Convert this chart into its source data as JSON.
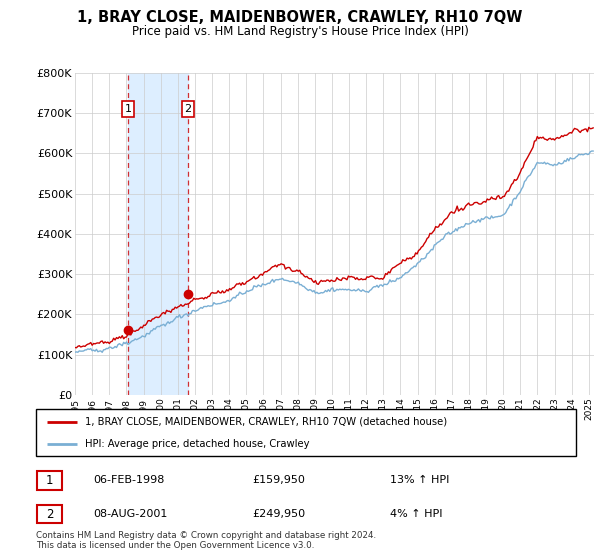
{
  "title": "1, BRAY CLOSE, MAIDENBOWER, CRAWLEY, RH10 7QW",
  "subtitle": "Price paid vs. HM Land Registry's House Price Index (HPI)",
  "legend_label_red": "1, BRAY CLOSE, MAIDENBOWER, CRAWLEY, RH10 7QW (detached house)",
  "legend_label_blue": "HPI: Average price, detached house, Crawley",
  "sale1_date": "06-FEB-1998",
  "sale1_price": "£159,950",
  "sale1_hpi": "13% ↑ HPI",
  "sale2_date": "08-AUG-2001",
  "sale2_price": "£249,950",
  "sale2_hpi": "4% ↑ HPI",
  "footer": "Contains HM Land Registry data © Crown copyright and database right 2024.\nThis data is licensed under the Open Government Licence v3.0.",
  "ylim": [
    0,
    800000
  ],
  "yticks": [
    0,
    100000,
    200000,
    300000,
    400000,
    500000,
    600000,
    700000,
    800000
  ],
  "red_color": "#cc0000",
  "blue_color": "#7aafd4",
  "shade_color": "#ddeeff",
  "sale1_x": 1998.09,
  "sale1_y": 159950,
  "sale2_x": 2001.59,
  "sale2_y": 249950,
  "xlim_left": 1995.0,
  "xlim_right": 2025.3
}
